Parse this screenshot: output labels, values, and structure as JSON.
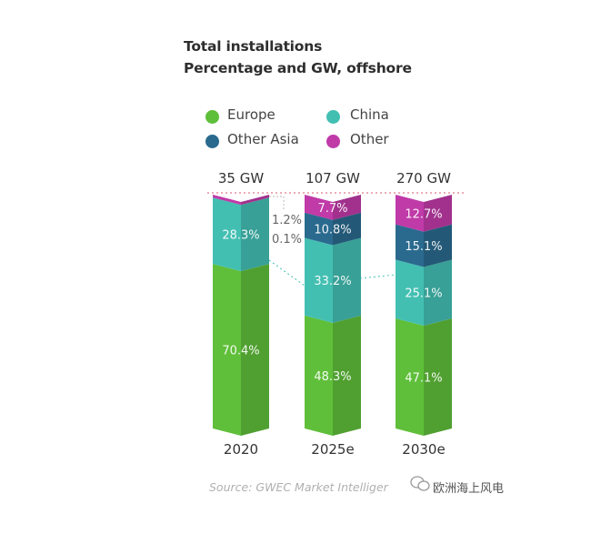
{
  "chart_data": {
    "type": "bar",
    "stacked": true,
    "percent_stacked": true,
    "title": "Total installations",
    "subtitle": "Percentage and GW, offshore",
    "categories": [
      "2020",
      "2025e",
      "2030e"
    ],
    "totals": [
      "35 GW",
      "107 GW",
      "270 GW"
    ],
    "series": [
      {
        "name": "Europe",
        "color": "#5fbf3a",
        "values": [
          70.4,
          48.3,
          47.1
        ],
        "labels": [
          "70.4%",
          "48.3%",
          "47.1%"
        ]
      },
      {
        "name": "China",
        "color": "#43bfb2",
        "values": [
          28.3,
          33.2,
          25.1
        ],
        "labels": [
          "28.3%",
          "33.2%",
          "25.1%"
        ]
      },
      {
        "name": "Other Asia",
        "color": "#2a6a8e",
        "values": [
          0.1,
          10.8,
          15.1
        ],
        "labels": [
          "0.1%",
          "10.8%",
          "15.1%"
        ]
      },
      {
        "name": "Other",
        "color": "#c03aa8",
        "values": [
          1.2,
          7.7,
          12.7
        ],
        "labels": [
          "1.2%",
          "7.7%",
          "12.7%"
        ]
      }
    ],
    "legend_position": "top"
  },
  "source": "Source: GWEC Market Intelliger",
  "watermark": "欧洲海上风电"
}
